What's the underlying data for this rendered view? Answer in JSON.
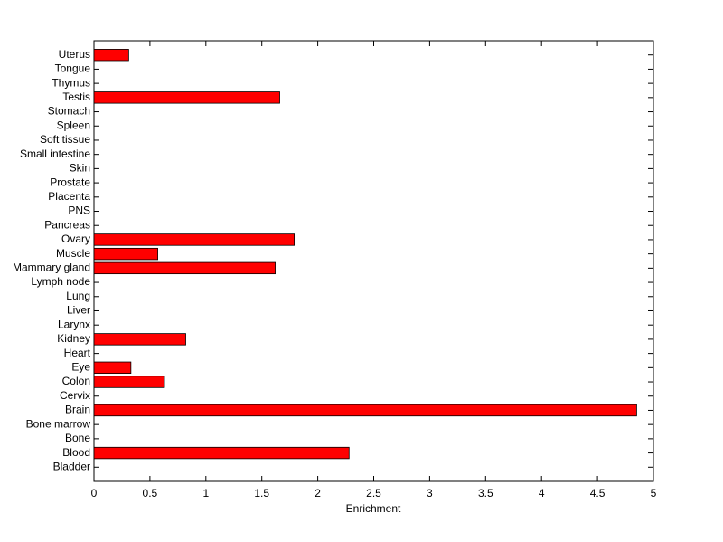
{
  "chart_data": {
    "type": "bar",
    "orientation": "horizontal",
    "xlabel": "Enrichment",
    "categories": [
      "Bladder",
      "Blood",
      "Bone",
      "Bone marrow",
      "Brain",
      "Cervix",
      "Colon",
      "Eye",
      "Heart",
      "Kidney",
      "Larynx",
      "Liver",
      "Lung",
      "Lymph node",
      "Mammary gland",
      "Muscle",
      "Ovary",
      "Pancreas",
      "PNS",
      "Placenta",
      "Prostate",
      "Skin",
      "Small intestine",
      "Soft tissue",
      "Spleen",
      "Stomach",
      "Testis",
      "Thymus",
      "Tongue",
      "Uterus"
    ],
    "values": [
      0,
      2.28,
      0,
      0,
      4.85,
      0,
      0.63,
      0.33,
      0,
      0.82,
      0,
      0,
      0,
      0,
      1.62,
      0.57,
      1.79,
      0,
      0,
      0,
      0,
      0,
      0,
      0,
      0,
      0,
      1.66,
      0,
      0,
      0.31
    ],
    "color": "#ff0000",
    "xlim": [
      0,
      5
    ],
    "xticks": [
      0,
      0.5,
      1,
      1.5,
      2,
      2.5,
      3,
      3.5,
      4,
      4.5,
      5
    ],
    "grid": false
  }
}
